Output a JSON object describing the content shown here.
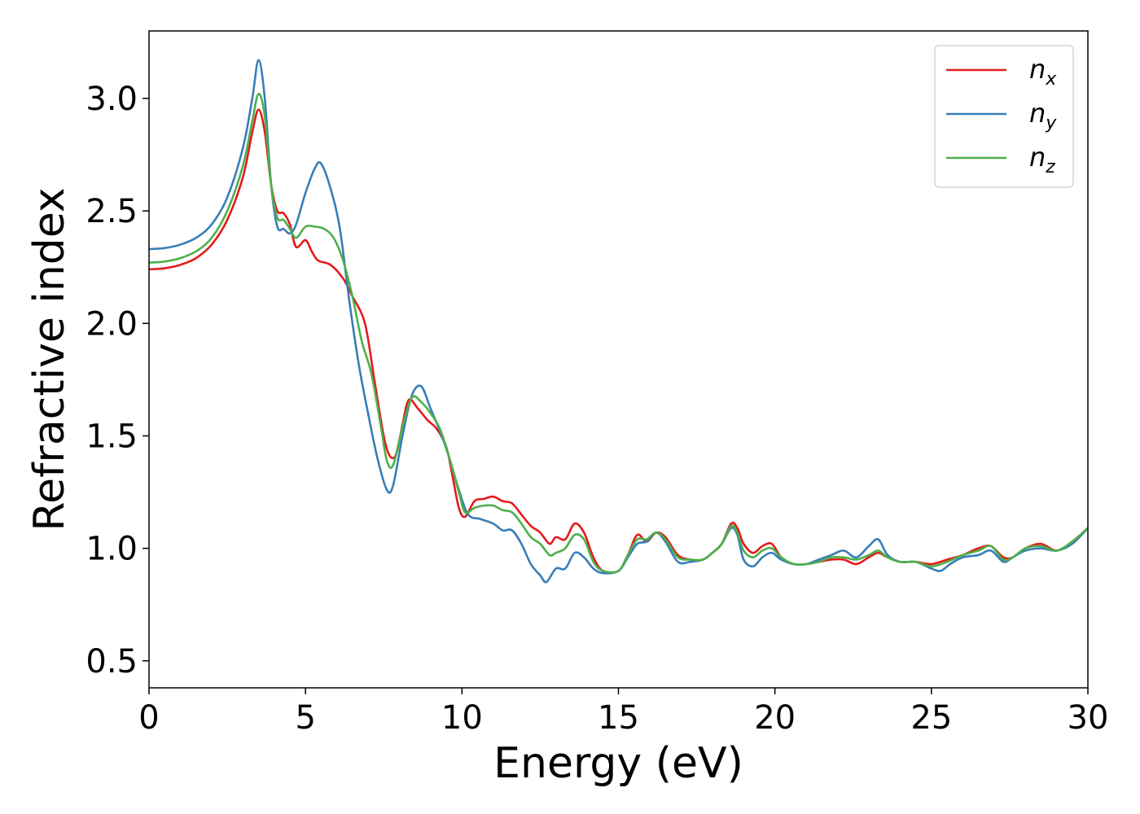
{
  "chart_data": {
    "type": "line",
    "xlabel": "Energy (eV)",
    "ylabel": "Refractive index",
    "xlim": [
      0,
      30
    ],
    "ylim": [
      0.38,
      3.3
    ],
    "xticks": [
      0,
      5,
      10,
      15,
      20,
      25,
      30
    ],
    "xtick_labels": [
      "0",
      "5",
      "10",
      "15",
      "20",
      "25",
      "30"
    ],
    "yticks": [
      0.5,
      1.0,
      1.5,
      2.0,
      2.5,
      3.0
    ],
    "ytick_labels": [
      "0.5",
      "1.0",
      "1.5",
      "2.0",
      "2.5",
      "3.0"
    ],
    "grid": false,
    "legend_position": "top-right",
    "series": [
      {
        "name": "n_x",
        "label_base": "n",
        "label_sub": "x",
        "color": "#e41a1c",
        "points": [
          [
            0,
            2.24
          ],
          [
            0.5,
            2.245
          ],
          [
            1,
            2.26
          ],
          [
            1.5,
            2.29
          ],
          [
            2,
            2.35
          ],
          [
            2.5,
            2.46
          ],
          [
            3,
            2.65
          ],
          [
            3.3,
            2.85
          ],
          [
            3.5,
            2.95
          ],
          [
            3.7,
            2.85
          ],
          [
            3.9,
            2.62
          ],
          [
            4.1,
            2.5
          ],
          [
            4.3,
            2.49
          ],
          [
            4.5,
            2.44
          ],
          [
            4.7,
            2.34
          ],
          [
            5.0,
            2.37
          ],
          [
            5.2,
            2.32
          ],
          [
            5.4,
            2.28
          ],
          [
            5.8,
            2.26
          ],
          [
            6.2,
            2.2
          ],
          [
            6.5,
            2.12
          ],
          [
            6.9,
            2.0
          ],
          [
            7.2,
            1.75
          ],
          [
            7.5,
            1.5
          ],
          [
            7.7,
            1.41
          ],
          [
            7.9,
            1.42
          ],
          [
            8.1,
            1.55
          ],
          [
            8.3,
            1.66
          ],
          [
            8.6,
            1.62
          ],
          [
            8.9,
            1.57
          ],
          [
            9.2,
            1.53
          ],
          [
            9.5,
            1.45
          ],
          [
            9.7,
            1.32
          ],
          [
            9.9,
            1.18
          ],
          [
            10.1,
            1.14
          ],
          [
            10.4,
            1.21
          ],
          [
            10.7,
            1.22
          ],
          [
            11.0,
            1.23
          ],
          [
            11.3,
            1.21
          ],
          [
            11.6,
            1.2
          ],
          [
            11.9,
            1.15
          ],
          [
            12.2,
            1.1
          ],
          [
            12.5,
            1.07
          ],
          [
            12.8,
            1.02
          ],
          [
            13.0,
            1.05
          ],
          [
            13.3,
            1.04
          ],
          [
            13.6,
            1.11
          ],
          [
            13.9,
            1.07
          ],
          [
            14.2,
            0.96
          ],
          [
            14.5,
            0.9
          ],
          [
            15.0,
            0.9
          ],
          [
            15.3,
            0.97
          ],
          [
            15.6,
            1.06
          ],
          [
            15.9,
            1.03
          ],
          [
            16.2,
            1.07
          ],
          [
            16.5,
            1.05
          ],
          [
            16.9,
            0.97
          ],
          [
            17.3,
            0.95
          ],
          [
            17.7,
            0.95
          ],
          [
            18.0,
            0.98
          ],
          [
            18.3,
            1.02
          ],
          [
            18.6,
            1.11
          ],
          [
            18.8,
            1.09
          ],
          [
            19.0,
            1.02
          ],
          [
            19.3,
            0.98
          ],
          [
            19.6,
            1.01
          ],
          [
            19.9,
            1.02
          ],
          [
            20.2,
            0.96
          ],
          [
            20.6,
            0.93
          ],
          [
            21.0,
            0.93
          ],
          [
            21.4,
            0.94
          ],
          [
            21.8,
            0.95
          ],
          [
            22.2,
            0.95
          ],
          [
            22.6,
            0.93
          ],
          [
            23.0,
            0.96
          ],
          [
            23.3,
            0.98
          ],
          [
            23.6,
            0.96
          ],
          [
            24.0,
            0.94
          ],
          [
            24.5,
            0.94
          ],
          [
            25.0,
            0.93
          ],
          [
            25.5,
            0.95
          ],
          [
            26.0,
            0.97
          ],
          [
            26.5,
            1.0
          ],
          [
            26.9,
            1.01
          ],
          [
            27.3,
            0.96
          ],
          [
            27.6,
            0.96
          ],
          [
            28.0,
            1.0
          ],
          [
            28.5,
            1.02
          ],
          [
            29.0,
            0.99
          ],
          [
            29.5,
            1.03
          ],
          [
            30.0,
            1.09
          ]
        ]
      },
      {
        "name": "n_y",
        "label_base": "n",
        "label_sub": "y",
        "color": "#377eb8",
        "points": [
          [
            0,
            2.33
          ],
          [
            0.5,
            2.335
          ],
          [
            1,
            2.35
          ],
          [
            1.5,
            2.38
          ],
          [
            2,
            2.44
          ],
          [
            2.5,
            2.56
          ],
          [
            3,
            2.78
          ],
          [
            3.3,
            3.0
          ],
          [
            3.5,
            3.17
          ],
          [
            3.7,
            3.0
          ],
          [
            3.9,
            2.62
          ],
          [
            4.1,
            2.43
          ],
          [
            4.3,
            2.42
          ],
          [
            4.5,
            2.4
          ],
          [
            4.7,
            2.44
          ],
          [
            5.0,
            2.58
          ],
          [
            5.3,
            2.69
          ],
          [
            5.5,
            2.71
          ],
          [
            5.8,
            2.6
          ],
          [
            6.1,
            2.42
          ],
          [
            6.4,
            2.1
          ],
          [
            6.7,
            1.82
          ],
          [
            7.0,
            1.6
          ],
          [
            7.3,
            1.4
          ],
          [
            7.6,
            1.26
          ],
          [
            7.8,
            1.28
          ],
          [
            8.1,
            1.5
          ],
          [
            8.4,
            1.68
          ],
          [
            8.7,
            1.72
          ],
          [
            9.0,
            1.62
          ],
          [
            9.3,
            1.52
          ],
          [
            9.6,
            1.4
          ],
          [
            9.9,
            1.26
          ],
          [
            10.2,
            1.15
          ],
          [
            10.6,
            1.13
          ],
          [
            11.0,
            1.11
          ],
          [
            11.3,
            1.08
          ],
          [
            11.6,
            1.08
          ],
          [
            11.9,
            1.02
          ],
          [
            12.2,
            0.93
          ],
          [
            12.5,
            0.88
          ],
          [
            12.7,
            0.85
          ],
          [
            13.0,
            0.91
          ],
          [
            13.3,
            0.91
          ],
          [
            13.6,
            0.98
          ],
          [
            13.9,
            0.96
          ],
          [
            14.2,
            0.91
          ],
          [
            14.5,
            0.89
          ],
          [
            15.0,
            0.9
          ],
          [
            15.3,
            0.96
          ],
          [
            15.6,
            1.02
          ],
          [
            15.9,
            1.03
          ],
          [
            16.2,
            1.07
          ],
          [
            16.5,
            1.03
          ],
          [
            16.9,
            0.94
          ],
          [
            17.3,
            0.94
          ],
          [
            17.7,
            0.95
          ],
          [
            18.0,
            0.98
          ],
          [
            18.3,
            1.02
          ],
          [
            18.6,
            1.09
          ],
          [
            18.8,
            1.06
          ],
          [
            19.0,
            0.95
          ],
          [
            19.3,
            0.92
          ],
          [
            19.6,
            0.96
          ],
          [
            19.9,
            0.98
          ],
          [
            20.2,
            0.95
          ],
          [
            20.6,
            0.93
          ],
          [
            21.0,
            0.93
          ],
          [
            21.4,
            0.95
          ],
          [
            21.8,
            0.97
          ],
          [
            22.2,
            0.99
          ],
          [
            22.6,
            0.96
          ],
          [
            23.0,
            1.01
          ],
          [
            23.3,
            1.04
          ],
          [
            23.6,
            0.97
          ],
          [
            24.0,
            0.94
          ],
          [
            24.5,
            0.94
          ],
          [
            25.0,
            0.91
          ],
          [
            25.3,
            0.9
          ],
          [
            25.6,
            0.93
          ],
          [
            26.0,
            0.96
          ],
          [
            26.5,
            0.97
          ],
          [
            26.9,
            0.99
          ],
          [
            27.3,
            0.94
          ],
          [
            27.6,
            0.96
          ],
          [
            28.0,
            0.99
          ],
          [
            28.5,
            1.0
          ],
          [
            29.0,
            0.99
          ],
          [
            29.5,
            1.02
          ],
          [
            30.0,
            1.09
          ]
        ]
      },
      {
        "name": "n_z",
        "label_base": "n",
        "label_sub": "z",
        "color": "#4daf4a",
        "points": [
          [
            0,
            2.27
          ],
          [
            0.5,
            2.275
          ],
          [
            1,
            2.29
          ],
          [
            1.5,
            2.32
          ],
          [
            2,
            2.38
          ],
          [
            2.5,
            2.5
          ],
          [
            3,
            2.7
          ],
          [
            3.3,
            2.9
          ],
          [
            3.5,
            3.02
          ],
          [
            3.7,
            2.92
          ],
          [
            3.9,
            2.62
          ],
          [
            4.1,
            2.47
          ],
          [
            4.3,
            2.46
          ],
          [
            4.5,
            2.42
          ],
          [
            4.7,
            2.38
          ],
          [
            5.0,
            2.43
          ],
          [
            5.3,
            2.43
          ],
          [
            5.6,
            2.42
          ],
          [
            5.9,
            2.38
          ],
          [
            6.2,
            2.28
          ],
          [
            6.5,
            2.12
          ],
          [
            6.8,
            1.92
          ],
          [
            7.1,
            1.78
          ],
          [
            7.4,
            1.55
          ],
          [
            7.6,
            1.39
          ],
          [
            7.8,
            1.37
          ],
          [
            8.1,
            1.54
          ],
          [
            8.4,
            1.67
          ],
          [
            8.7,
            1.65
          ],
          [
            9.0,
            1.6
          ],
          [
            9.3,
            1.53
          ],
          [
            9.6,
            1.4
          ],
          [
            9.9,
            1.25
          ],
          [
            10.1,
            1.16
          ],
          [
            10.4,
            1.18
          ],
          [
            10.7,
            1.19
          ],
          [
            11.0,
            1.19
          ],
          [
            11.3,
            1.17
          ],
          [
            11.6,
            1.16
          ],
          [
            11.9,
            1.11
          ],
          [
            12.2,
            1.05
          ],
          [
            12.5,
            1.02
          ],
          [
            12.8,
            0.97
          ],
          [
            13.0,
            0.98
          ],
          [
            13.3,
            1.0
          ],
          [
            13.6,
            1.06
          ],
          [
            13.9,
            1.04
          ],
          [
            14.2,
            0.94
          ],
          [
            14.5,
            0.9
          ],
          [
            15.0,
            0.9
          ],
          [
            15.3,
            0.97
          ],
          [
            15.6,
            1.04
          ],
          [
            15.9,
            1.04
          ],
          [
            16.2,
            1.07
          ],
          [
            16.5,
            1.04
          ],
          [
            16.9,
            0.96
          ],
          [
            17.3,
            0.95
          ],
          [
            17.7,
            0.95
          ],
          [
            18.0,
            0.98
          ],
          [
            18.3,
            1.02
          ],
          [
            18.6,
            1.1
          ],
          [
            18.8,
            1.07
          ],
          [
            19.0,
            0.99
          ],
          [
            19.3,
            0.96
          ],
          [
            19.6,
            0.99
          ],
          [
            19.9,
            1.0
          ],
          [
            20.2,
            0.96
          ],
          [
            20.6,
            0.93
          ],
          [
            21.0,
            0.93
          ],
          [
            21.4,
            0.94
          ],
          [
            21.8,
            0.96
          ],
          [
            22.2,
            0.96
          ],
          [
            22.6,
            0.95
          ],
          [
            23.0,
            0.97
          ],
          [
            23.3,
            0.99
          ],
          [
            23.6,
            0.96
          ],
          [
            24.0,
            0.94
          ],
          [
            24.5,
            0.94
          ],
          [
            25.0,
            0.92
          ],
          [
            25.5,
            0.94
          ],
          [
            26.0,
            0.97
          ],
          [
            26.5,
            0.99
          ],
          [
            26.9,
            1.01
          ],
          [
            27.3,
            0.95
          ],
          [
            27.6,
            0.96
          ],
          [
            28.0,
            1.0
          ],
          [
            28.5,
            1.01
          ],
          [
            29.0,
            0.99
          ],
          [
            29.5,
            1.03
          ],
          [
            30.0,
            1.09
          ]
        ]
      }
    ]
  }
}
